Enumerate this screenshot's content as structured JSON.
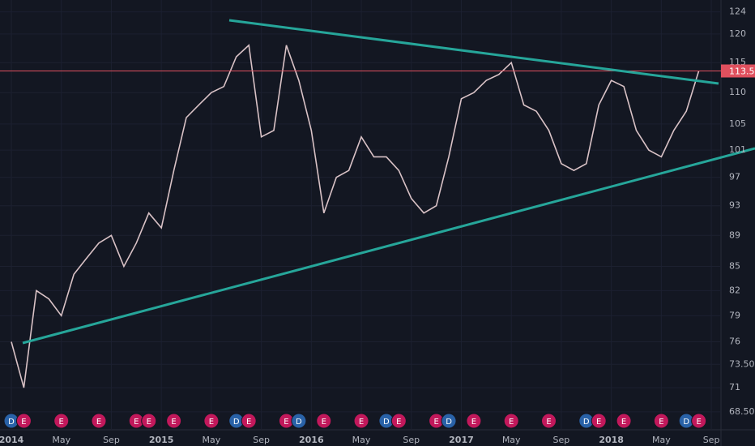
{
  "chart_data": {
    "type": "line",
    "log_scale": true,
    "grid": true,
    "color": "#d9c2c6",
    "background": "#131722",
    "x": [
      "2014-01",
      "2014-02",
      "2014-03",
      "2014-04",
      "2014-05",
      "2014-06",
      "2014-07",
      "2014-08",
      "2014-09",
      "2014-10",
      "2014-11",
      "2014-12",
      "2015-01",
      "2015-02",
      "2015-03",
      "2015-04",
      "2015-05",
      "2015-06",
      "2015-07",
      "2015-08",
      "2015-09",
      "2015-10",
      "2015-11",
      "2015-12",
      "2016-01",
      "2016-02",
      "2016-03",
      "2016-04",
      "2016-05",
      "2016-06",
      "2016-07",
      "2016-08",
      "2016-09",
      "2016-10",
      "2016-11",
      "2016-12",
      "2017-01",
      "2017-02",
      "2017-03",
      "2017-04",
      "2017-05",
      "2017-06",
      "2017-07",
      "2017-08",
      "2017-09",
      "2017-10",
      "2017-11",
      "2017-12",
      "2018-01",
      "2018-02",
      "2018-03",
      "2018-04",
      "2018-05",
      "2018-06",
      "2018-07",
      "2018-08"
    ],
    "values": [
      76,
      71,
      82,
      81,
      79,
      84,
      86,
      88,
      89,
      85,
      88,
      92,
      90,
      98,
      106,
      108,
      110,
      111,
      116,
      118,
      103,
      104,
      118,
      112,
      104,
      92,
      97,
      98,
      103,
      100,
      100,
      98,
      94,
      92,
      93,
      100,
      109,
      110,
      112,
      113,
      115,
      108,
      107,
      104,
      99,
      98,
      99,
      108,
      112,
      111,
      104,
      101,
      100,
      104,
      107,
      113.59
    ],
    "xlim": [
      "2014-01",
      "2018-10"
    ],
    "xticks": [
      {
        "value": "2014-01",
        "label": "2014"
      },
      {
        "value": "2014-05",
        "label": "May"
      },
      {
        "value": "2014-09",
        "label": "Sep"
      },
      {
        "value": "2015-01",
        "label": "2015"
      },
      {
        "value": "2015-05",
        "label": "May"
      },
      {
        "value": "2015-09",
        "label": "Sep"
      },
      {
        "value": "2016-01",
        "label": "2016"
      },
      {
        "value": "2016-05",
        "label": "May"
      },
      {
        "value": "2016-09",
        "label": "Sep"
      },
      {
        "value": "2017-01",
        "label": "2017"
      },
      {
        "value": "2017-05",
        "label": "May"
      },
      {
        "value": "2017-09",
        "label": "Sep"
      },
      {
        "value": "2018-01",
        "label": "2018"
      },
      {
        "value": "2018-05",
        "label": "May"
      },
      {
        "value": "2018-09",
        "label": "Sep"
      }
    ],
    "ylim": [
      66.7,
      126.2
    ],
    "yticks": [
      124,
      120,
      115,
      110,
      105,
      101,
      97,
      93,
      89,
      85,
      82,
      79,
      76,
      {
        "value": 73.5,
        "label": "73.50"
      },
      71,
      {
        "value": 68.5,
        "label": "68.50"
      }
    ],
    "last_price_color": "#e0505e",
    "events": [
      {
        "x": "2014-01",
        "label": "D",
        "color": "#2962a8"
      },
      {
        "x": "2014-02",
        "label": "E",
        "color": "#c2185b"
      },
      {
        "x": "2014-05",
        "label": "E",
        "color": "#c2185b"
      },
      {
        "x": "2014-08",
        "label": "E",
        "color": "#c2185b"
      },
      {
        "x": "2014-11",
        "label": "E",
        "color": "#c2185b"
      },
      {
        "x": "2014-12",
        "label": "E",
        "color": "#c2185b"
      },
      {
        "x": "2015-02",
        "label": "E",
        "color": "#c2185b"
      },
      {
        "x": "2015-05",
        "label": "E",
        "color": "#c2185b"
      },
      {
        "x": "2015-07",
        "label": "D",
        "color": "#2962a8"
      },
      {
        "x": "2015-08",
        "label": "E",
        "color": "#c2185b"
      },
      {
        "x": "2015-11",
        "label": "E",
        "color": "#c2185b"
      },
      {
        "x": "2015-12",
        "label": "D",
        "color": "#2962a8"
      },
      {
        "x": "2016-02",
        "label": "E",
        "color": "#c2185b"
      },
      {
        "x": "2016-05",
        "label": "E",
        "color": "#c2185b"
      },
      {
        "x": "2016-07",
        "label": "D",
        "color": "#2962a8"
      },
      {
        "x": "2016-08",
        "label": "E",
        "color": "#c2185b"
      },
      {
        "x": "2016-11",
        "label": "E",
        "color": "#c2185b"
      },
      {
        "x": "2016-12",
        "label": "D",
        "color": "#2962a8"
      },
      {
        "x": "2017-02",
        "label": "E",
        "color": "#c2185b"
      },
      {
        "x": "2017-05",
        "label": "E",
        "color": "#c2185b"
      },
      {
        "x": "2017-08",
        "label": "E",
        "color": "#c2185b"
      },
      {
        "x": "2017-11",
        "label": "D",
        "color": "#2962a8"
      },
      {
        "x": "2017-12",
        "label": "E",
        "color": "#c2185b"
      },
      {
        "x": "2018-02",
        "label": "E",
        "color": "#c2185b"
      },
      {
        "x": "2018-05",
        "label": "E",
        "color": "#c2185b"
      },
      {
        "x": "2018-07",
        "label": "D",
        "color": "#2962a8"
      },
      {
        "x": "2018-08",
        "label": "E",
        "color": "#c2185b"
      }
    ]
  }
}
